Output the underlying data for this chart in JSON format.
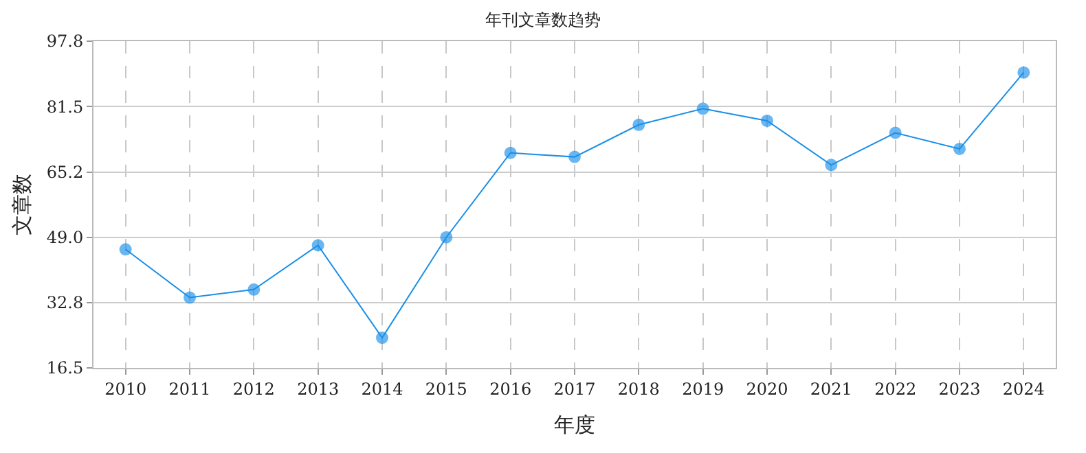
{
  "chart_data": {
    "type": "line",
    "title": "年刊文章数趋势",
    "xlabel": "年度",
    "ylabel": "文章数",
    "categories": [
      "2010",
      "2011",
      "2012",
      "2013",
      "2014",
      "2015",
      "2016",
      "2017",
      "2018",
      "2019",
      "2020",
      "2021",
      "2022",
      "2023",
      "2024"
    ],
    "series": [
      {
        "color": "#1a8fe8",
        "values": [
          46,
          34,
          36,
          47,
          24,
          49,
          70,
          69,
          77,
          81,
          78,
          67,
          75,
          71,
          90
        ]
      }
    ],
    "ylim": [
      16.5,
      97.8
    ],
    "yticks": [
      {
        "value": 16.5,
        "label": "16.5"
      },
      {
        "value": 32.8,
        "label": "32.8"
      },
      {
        "value": 49.0,
        "label": "49.0"
      },
      {
        "value": 65.2,
        "label": "65.2"
      },
      {
        "value": 81.5,
        "label": "81.5"
      },
      {
        "value": 97.8,
        "label": "97.8"
      }
    ],
    "grid": true,
    "marker": "circle",
    "line_style": "solid",
    "legend": false
  }
}
